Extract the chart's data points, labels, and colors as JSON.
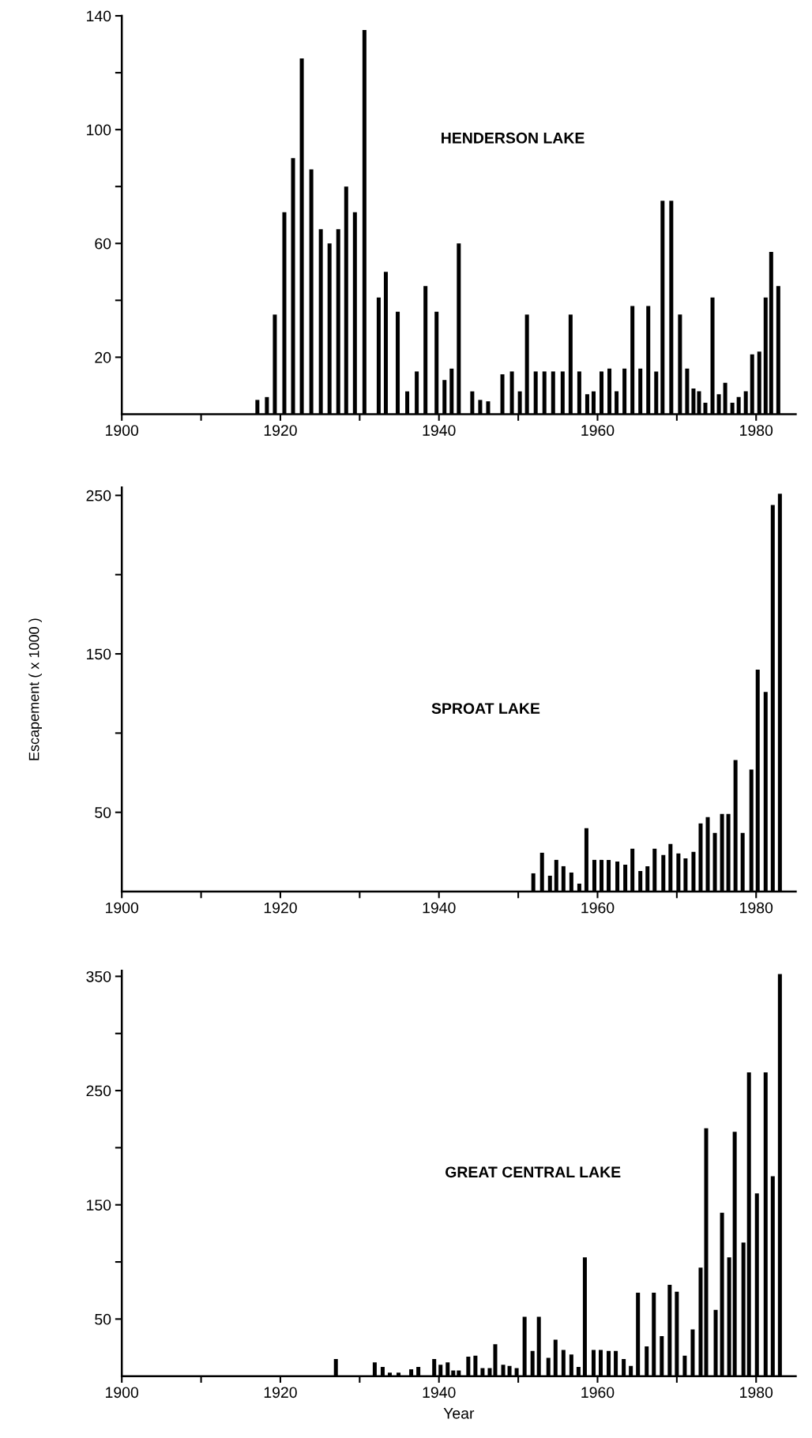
{
  "chart_data": [
    {
      "type": "bar",
      "title": "HENDERSON LAKE",
      "color": "#000000",
      "x": [
        1917.1,
        1918.3,
        1919.3,
        1920.5,
        1921.6,
        1922.7,
        1923.9,
        1925.1,
        1926.2,
        1927.3,
        1928.3,
        1929.4,
        1930.6,
        1932.4,
        1933.3,
        1934.8,
        1936.0,
        1937.2,
        1938.3,
        1939.7,
        1940.7,
        1941.6,
        1942.5,
        1944.2,
        1945.2,
        1946.2,
        1948.0,
        1949.2,
        1950.2,
        1951.1,
        1952.2,
        1953.3,
        1954.4,
        1955.6,
        1956.6,
        1957.7,
        1958.7,
        1959.5,
        1960.5,
        1961.5,
        1962.4,
        1963.4,
        1964.4,
        1965.4,
        1966.4,
        1967.4,
        1968.2,
        1969.3,
        1970.4,
        1971.3,
        1972.1,
        1972.8,
        1973.6,
        1974.5,
        1975.3,
        1976.1,
        1977.0,
        1977.8,
        1978.7,
        1979.5,
        1980.4,
        1981.2,
        1981.9,
        1982.8
      ],
      "values": [
        5,
        6,
        35,
        71,
        90,
        125,
        86,
        65,
        60,
        65,
        80,
        71,
        135,
        41,
        50,
        36,
        8,
        15,
        45,
        36,
        12,
        16,
        60,
        8,
        5,
        4.5,
        14,
        15,
        8,
        35,
        15,
        15,
        15,
        15,
        35,
        15,
        7,
        8,
        15,
        16,
        8,
        16,
        38,
        16,
        38,
        15,
        75,
        75,
        35,
        16,
        9,
        8,
        4,
        41,
        7,
        11,
        4,
        6,
        8,
        21,
        22,
        41,
        57,
        45
      ],
      "xlim": [
        1900,
        1985
      ],
      "ylim": [
        0,
        140
      ],
      "xticks": [
        1900,
        {
          "value": 1910,
          "label": null
        },
        1920,
        {
          "value": 1930,
          "label": null
        },
        1940,
        {
          "value": 1950,
          "label": null
        },
        1960,
        {
          "value": 1970,
          "label": null
        },
        1980
      ],
      "yticks": [
        20,
        {
          "value": 40,
          "label": null
        },
        60,
        {
          "value": 80,
          "label": null
        },
        100,
        {
          "value": 120,
          "label": null
        },
        140
      ]
    },
    {
      "type": "bar",
      "title": "SPROAT LAKE",
      "ylabel": "Escapement ( x 1000 )",
      "color": "#000000",
      "x": [
        1951.9,
        1953.0,
        1954.0,
        1954.8,
        1955.7,
        1956.7,
        1957.7,
        1958.6,
        1959.6,
        1960.5,
        1961.4,
        1962.5,
        1963.5,
        1964.4,
        1965.4,
        1966.3,
        1967.2,
        1968.3,
        1969.2,
        1970.2,
        1971.1,
        1972.1,
        1973.0,
        1973.9,
        1974.8,
        1975.7,
        1976.5,
        1977.4,
        1978.3,
        1979.4,
        1980.2,
        1981.2,
        1982.1,
        1983.0
      ],
      "values": [
        11.5,
        24.5,
        10,
        20,
        16,
        12,
        5,
        40,
        20,
        20,
        20,
        19,
        17,
        27,
        13,
        16,
        27,
        23,
        30,
        24,
        21,
        25,
        43,
        47,
        37,
        49,
        49,
        83,
        37,
        77,
        140,
        126,
        244,
        251
      ],
      "xlim": [
        1900,
        1985
      ],
      "ylim": [
        0,
        255
      ],
      "xticks": [
        1900,
        {
          "value": 1910,
          "label": null
        },
        1920,
        {
          "value": 1930,
          "label": null
        },
        1940,
        {
          "value": 1950,
          "label": null
        },
        1960,
        {
          "value": 1970,
          "label": null
        },
        1980
      ],
      "yticks": [
        50,
        {
          "value": 100,
          "label": null
        },
        150,
        {
          "value": 200,
          "label": null
        },
        250
      ]
    },
    {
      "type": "bar",
      "title": "GREAT CENTRAL LAKE",
      "xlabel": "Year",
      "color": "#000000",
      "x": [
        1927.0,
        1931.9,
        1932.9,
        1933.8,
        1934.9,
        1936.5,
        1937.4,
        1939.4,
        1940.2,
        1941.1,
        1941.8,
        1942.5,
        1943.7,
        1944.6,
        1945.5,
        1946.4,
        1947.1,
        1948.1,
        1948.9,
        1949.8,
        1950.8,
        1951.8,
        1952.6,
        1953.8,
        1954.7,
        1955.7,
        1956.7,
        1957.6,
        1958.4,
        1959.5,
        1960.4,
        1961.4,
        1962.3,
        1963.3,
        1964.2,
        1965.1,
        1966.2,
        1967.1,
        1968.1,
        1969.1,
        1970.0,
        1971.0,
        1972.0,
        1973.0,
        1973.7,
        1974.9,
        1975.7,
        1976.6,
        1977.3,
        1978.4,
        1979.1,
        1980.1,
        1981.2,
        1982.1,
        1983.0
      ],
      "values": [
        15,
        12,
        8,
        3,
        3,
        6,
        8,
        15,
        10,
        12,
        5,
        5,
        17,
        18,
        7,
        7,
        28,
        10,
        9,
        7,
        52,
        22,
        52,
        16,
        32,
        23,
        19,
        8,
        104,
        23,
        23,
        22,
        22,
        15,
        9,
        73,
        26,
        73,
        35,
        80,
        74,
        18,
        41,
        95,
        217,
        58,
        143,
        104,
        214,
        117,
        266,
        160,
        266,
        175,
        352
      ],
      "xlim": [
        1900,
        1985
      ],
      "ylim": [
        0,
        355
      ],
      "xticks": [
        1900,
        {
          "value": 1910,
          "label": null
        },
        1920,
        {
          "value": 1930,
          "label": null
        },
        1940,
        {
          "value": 1950,
          "label": null
        },
        1960,
        {
          "value": 1970,
          "label": null
        },
        1980
      ],
      "yticks": [
        50,
        {
          "value": 100,
          "label": null
        },
        150,
        {
          "value": 200,
          "label": null
        },
        250,
        {
          "value": 300,
          "label": null
        },
        350
      ]
    }
  ]
}
